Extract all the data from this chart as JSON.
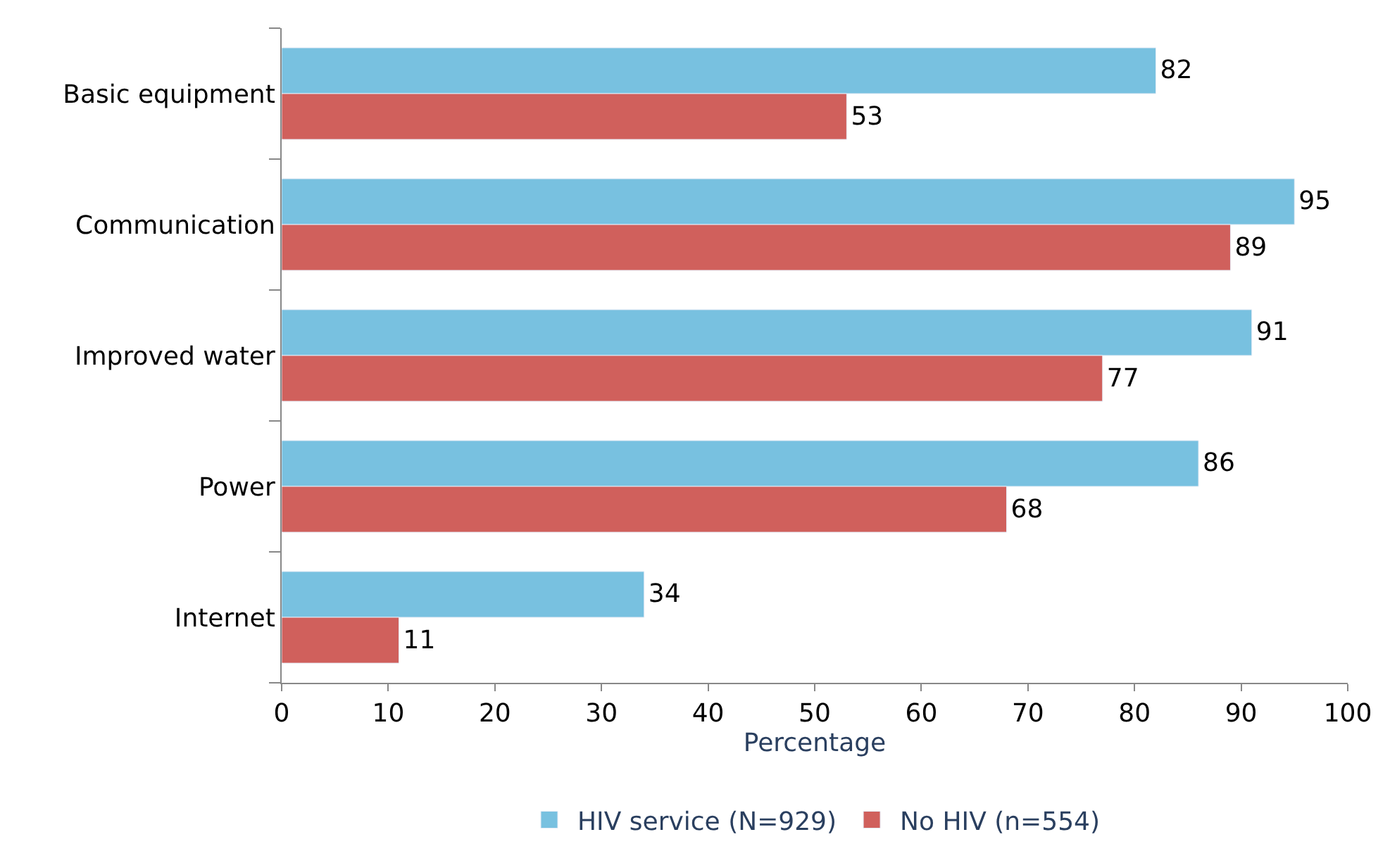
{
  "chart_data": {
    "type": "bar",
    "orientation": "horizontal",
    "xlabel": "Percentage",
    "categories": [
      "Basic equipment",
      "Communication",
      "Improved water",
      "Power",
      "Internet"
    ],
    "series": [
      {
        "name": "HIV service (N=929)",
        "color": "#78c1e0",
        "values": [
          82,
          95,
          91,
          86,
          34
        ]
      },
      {
        "name": "No HIV (n=554)",
        "color": "#d0605c",
        "values": [
          53,
          89,
          77,
          68,
          11
        ]
      }
    ],
    "xlim": [
      0,
      100
    ],
    "xticks": [
      0,
      10,
      20,
      30,
      40,
      50,
      60,
      70,
      80,
      90,
      100
    ],
    "data_labels": true,
    "legend": "bottom"
  }
}
